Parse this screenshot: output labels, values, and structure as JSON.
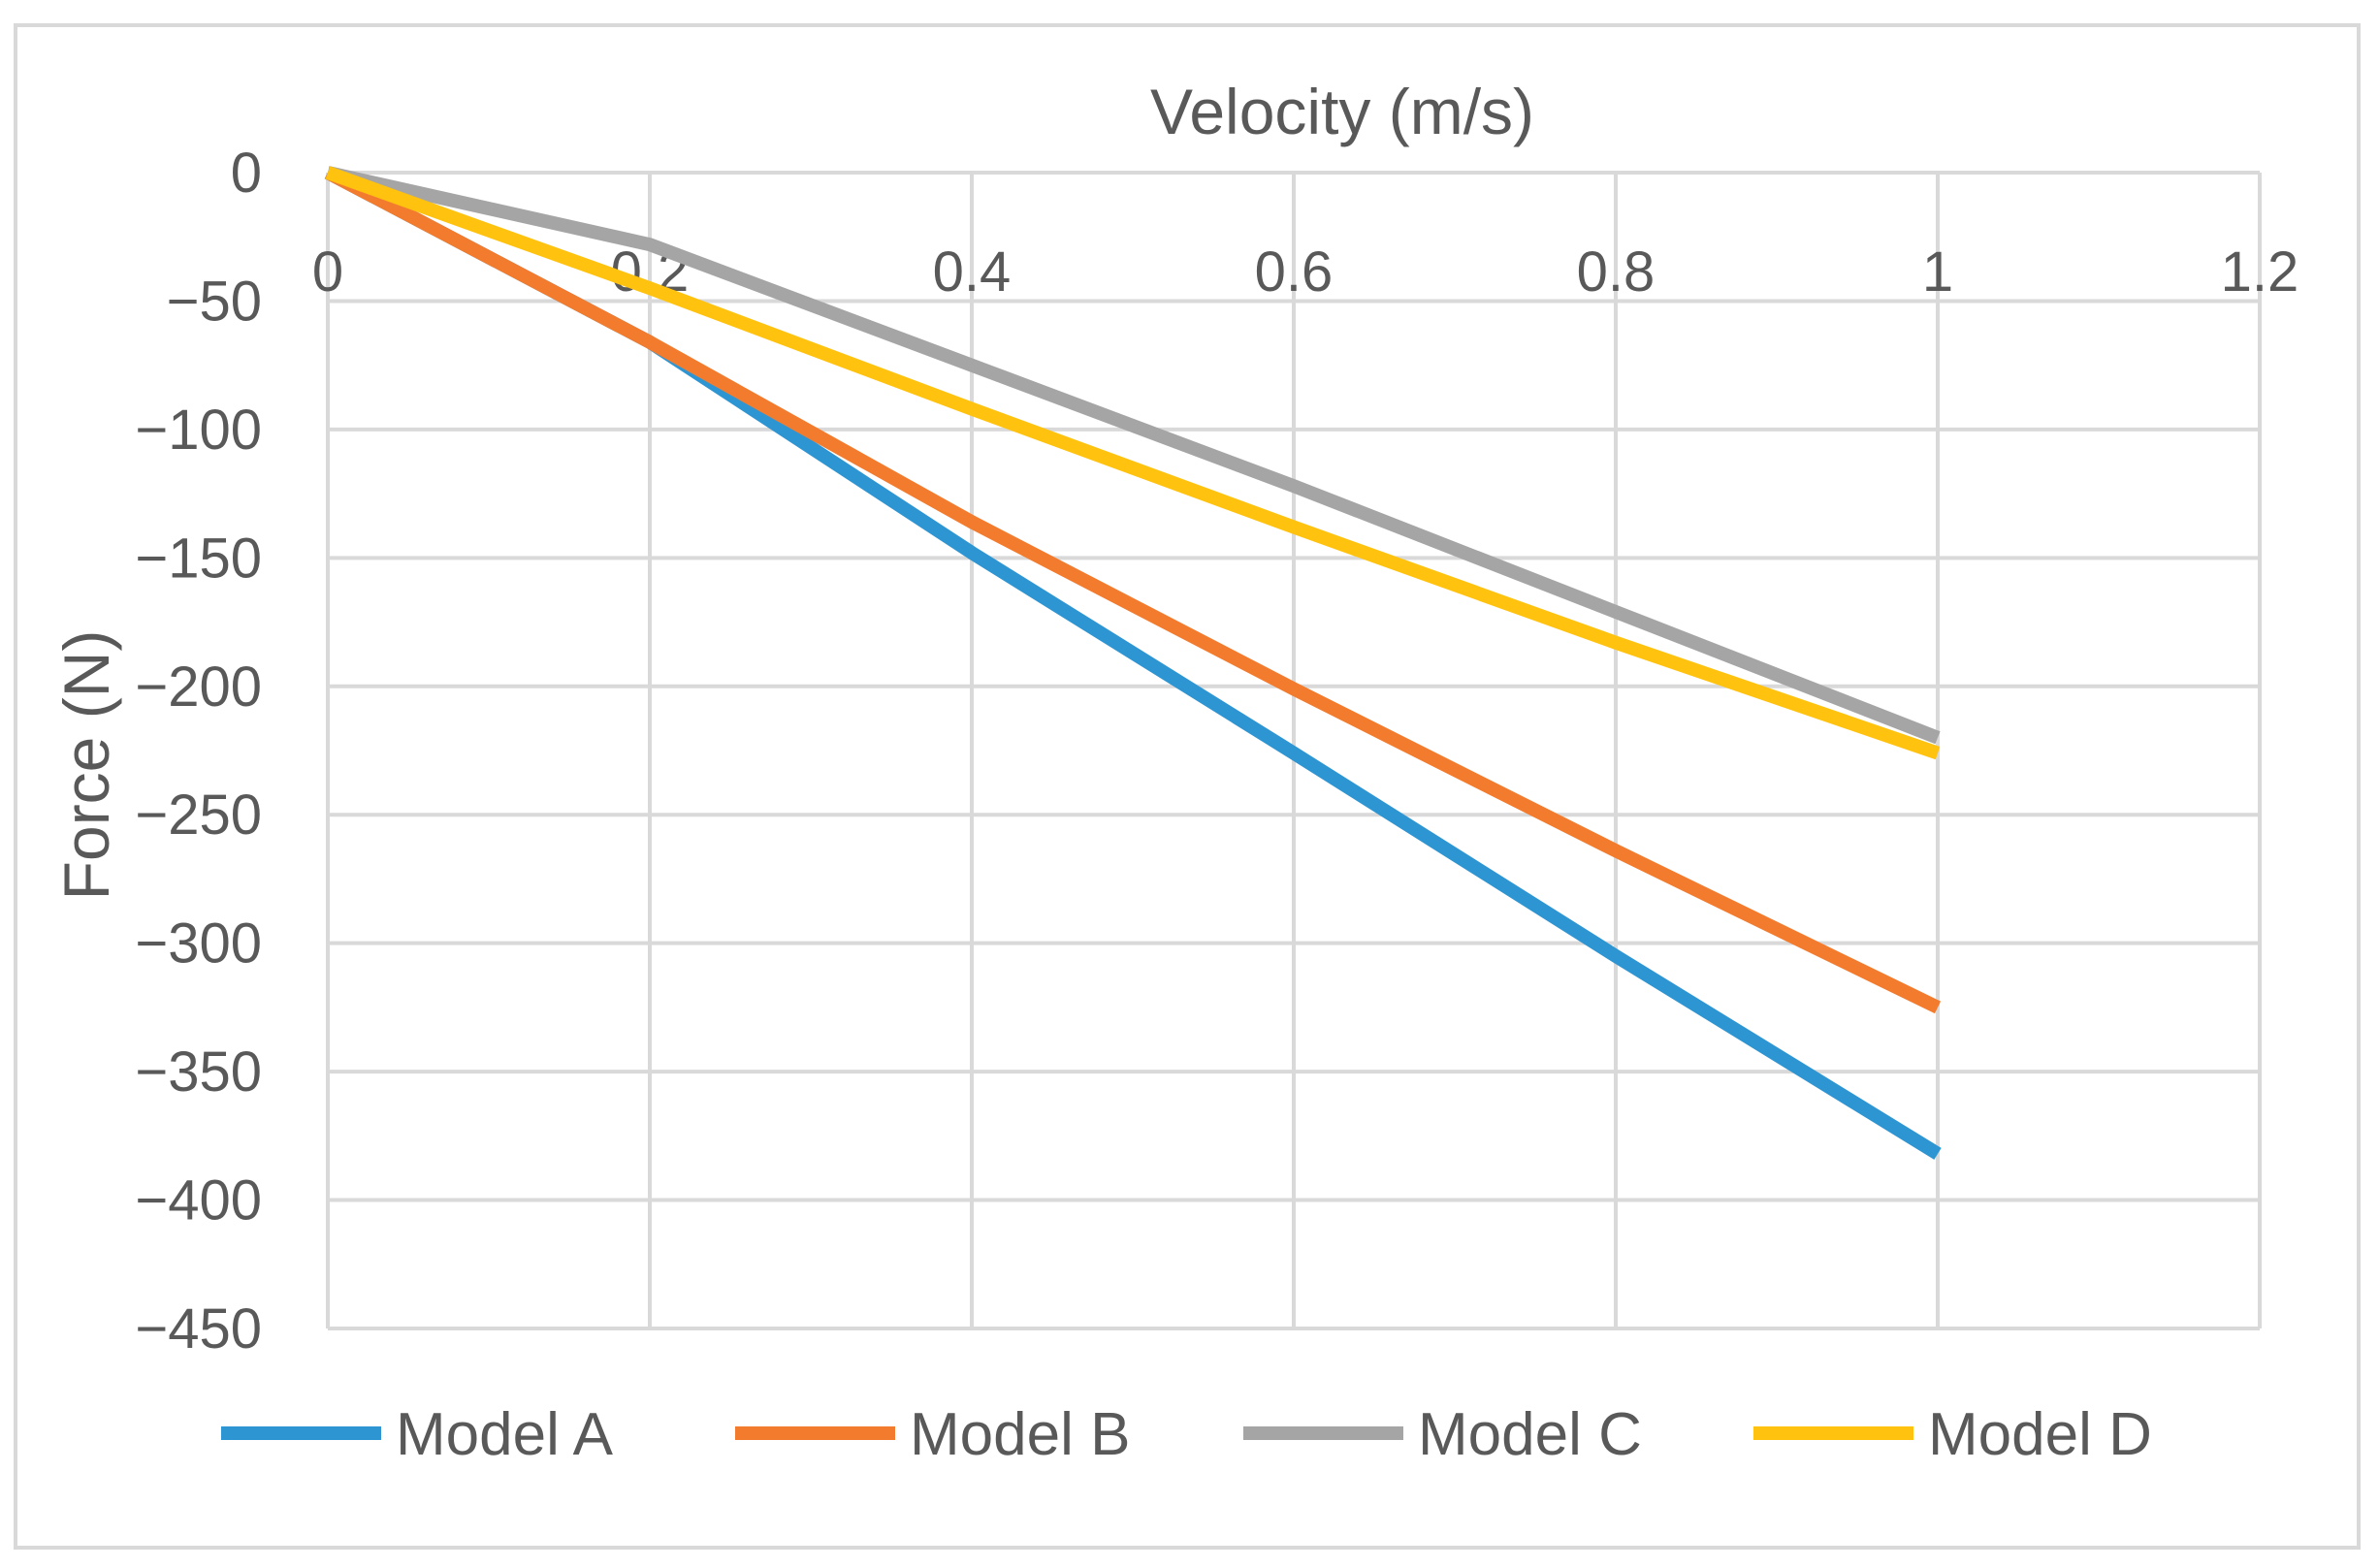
{
  "chart_data": {
    "type": "line",
    "title": "",
    "xlabel": "Velocity (m/s)",
    "ylabel": "Force (N)",
    "xlim": [
      0,
      1.2
    ],
    "ylim": [
      -450,
      0
    ],
    "x_ticks": [
      "0",
      "0.2",
      "0.4",
      "0.6",
      "0.8",
      "1",
      "1.2"
    ],
    "y_ticks": [
      "0",
      "−50",
      "−100",
      "−150",
      "−200",
      "−250",
      "−300",
      "−350",
      "−400",
      "−450"
    ],
    "grid": true,
    "legend_position": "bottom",
    "x": [
      0,
      0.2,
      0.4,
      0.6,
      0.8,
      1.0
    ],
    "series": [
      {
        "name": "Model A",
        "color": "#2e95d3",
        "values": [
          0,
          -66,
          -148,
          -226,
          -305,
          -382
        ]
      },
      {
        "name": "Model B",
        "color": "#f37b2d",
        "values": [
          0,
          -66,
          -136,
          -201,
          -264,
          -325
        ]
      },
      {
        "name": "Model C",
        "color": "#a5a5a5",
        "values": [
          0,
          -28,
          -75,
          -122,
          -171,
          -220
        ]
      },
      {
        "name": "Model D",
        "color": "#ffc20e",
        "values": [
          0,
          -45,
          -92,
          -138,
          -183,
          -226
        ]
      }
    ]
  }
}
